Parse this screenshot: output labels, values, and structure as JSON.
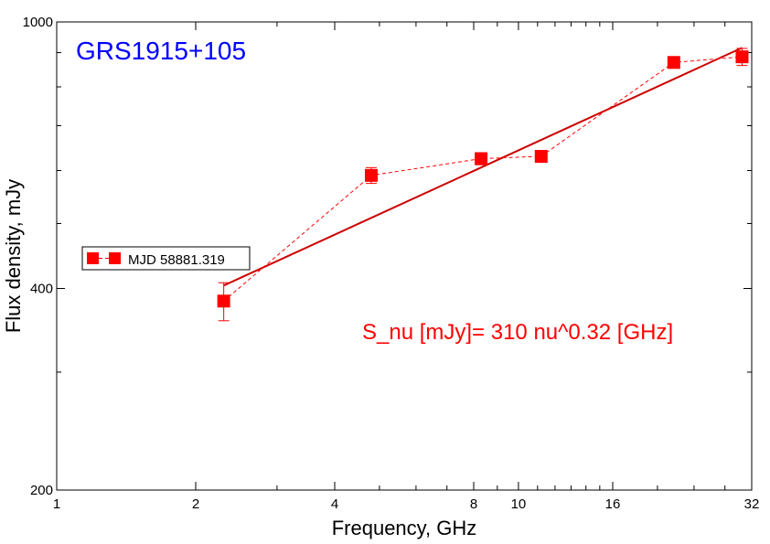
{
  "chart_data": {
    "type": "scatter",
    "title": "GRS1915+105",
    "title_color": "#0000ff",
    "xlabel": "Frequency, GHz",
    "ylabel": "Flux density, mJy",
    "x_scale": "log",
    "y_scale": "log",
    "xlim": [
      1,
      32
    ],
    "ylim": [
      200,
      1000
    ],
    "x_ticks": [
      1,
      2,
      4,
      8,
      10,
      16,
      32
    ],
    "x_tick_labels": [
      "1",
      "2",
      "4",
      "8",
      "10",
      "16",
      "32"
    ],
    "y_ticks": [
      200,
      400,
      1000
    ],
    "y_tick_labels": [
      "200",
      "400",
      "1000"
    ],
    "grid": false,
    "legend": {
      "position": "left-middle",
      "entries": [
        "MJD 58881.319"
      ]
    },
    "series": [
      {
        "name": "MJD 58881.319",
        "color": "#ff0000",
        "marker": "square",
        "line": "dashed",
        "x": [
          2.3,
          4.8,
          8.3,
          11.2,
          21.7,
          30.5
        ],
        "y": [
          383,
          590,
          625,
          630,
          870,
          887
        ],
        "yerr": [
          25,
          16,
          13,
          13,
          17,
          26
        ]
      }
    ],
    "fit": {
      "color": "#cc0000",
      "x": [
        2.3,
        30.5
      ],
      "y": [
        404,
        915
      ]
    },
    "annotation": {
      "text": "S_nu [mJy]= 310 nu^0.32 [GHz]",
      "color": "#ff0000"
    }
  }
}
